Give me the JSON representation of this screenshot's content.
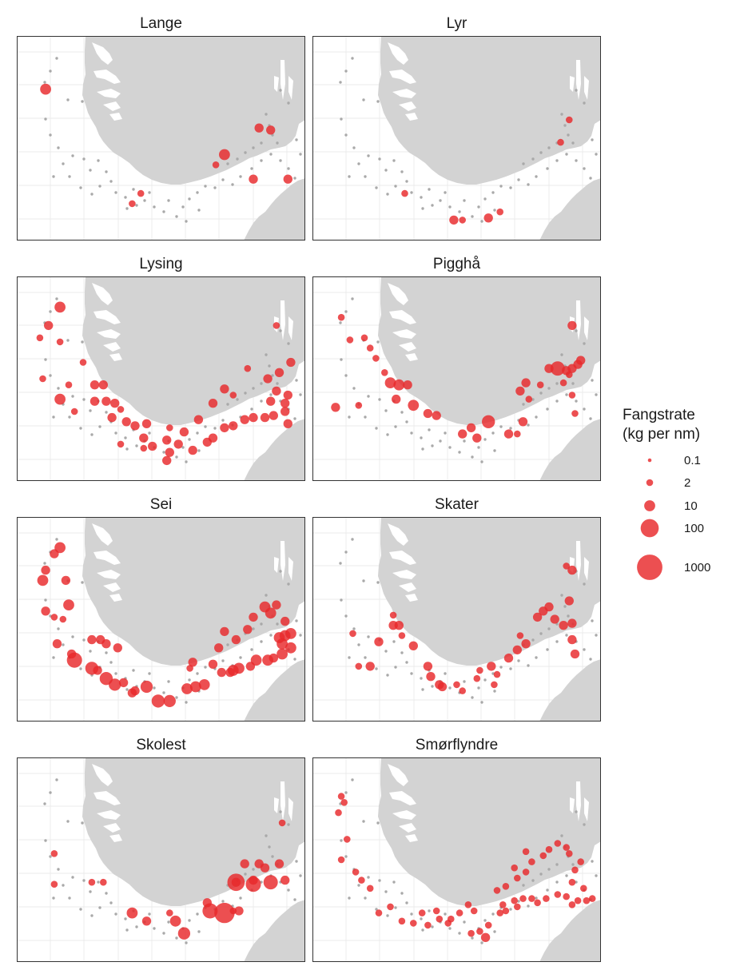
{
  "colors": {
    "catch": "#e8282b",
    "zero_catch": "#a9a9a9",
    "land": "#d3d3d3",
    "grid": "#ebebeb",
    "border": "#333333",
    "background": "#ffffff"
  },
  "legend": {
    "title_line1": "Fangstrate",
    "title_line2": "(kg per nm)",
    "entries": [
      {
        "label": "0.1",
        "value": 0.1
      },
      {
        "label": "2",
        "value": 2
      },
      {
        "label": "10",
        "value": 10
      },
      {
        "label": "100",
        "value": 100
      },
      {
        "label": "1000",
        "value": 1000
      }
    ]
  },
  "panels": [
    {
      "title": "Lange",
      "catches": [
        [
          0.1,
          0.26,
          10
        ],
        [
          0.43,
          0.77,
          2
        ],
        [
          0.4,
          0.82,
          2
        ],
        [
          0.72,
          0.58,
          10
        ],
        [
          0.69,
          0.63,
          2
        ],
        [
          0.84,
          0.45,
          5
        ],
        [
          0.88,
          0.46,
          5
        ],
        [
          0.82,
          0.7,
          5
        ],
        [
          0.94,
          0.7,
          5
        ]
      ]
    },
    {
      "title": "Lyr",
      "catches": [
        [
          0.32,
          0.77,
          2
        ],
        [
          0.49,
          0.9,
          5
        ],
        [
          0.52,
          0.9,
          2
        ],
        [
          0.61,
          0.89,
          5
        ],
        [
          0.65,
          0.86,
          2
        ],
        [
          0.86,
          0.52,
          2
        ],
        [
          0.89,
          0.41,
          2
        ]
      ]
    },
    {
      "title": "Lysing",
      "catches": [
        [
          0.15,
          0.15,
          10
        ],
        [
          0.11,
          0.24,
          5
        ],
        [
          0.08,
          0.3,
          2
        ],
        [
          0.15,
          0.32,
          2
        ],
        [
          0.23,
          0.42,
          2
        ],
        [
          0.09,
          0.5,
          2
        ],
        [
          0.15,
          0.6,
          10
        ],
        [
          0.18,
          0.53,
          2
        ],
        [
          0.2,
          0.66,
          2
        ],
        [
          0.27,
          0.53,
          5
        ],
        [
          0.3,
          0.53,
          5
        ],
        [
          0.27,
          0.61,
          5
        ],
        [
          0.31,
          0.61,
          5
        ],
        [
          0.34,
          0.62,
          5
        ],
        [
          0.36,
          0.65,
          2
        ],
        [
          0.33,
          0.69,
          5
        ],
        [
          0.38,
          0.71,
          5
        ],
        [
          0.41,
          0.73,
          5
        ],
        [
          0.44,
          0.79,
          5
        ],
        [
          0.47,
          0.83,
          5
        ],
        [
          0.52,
          0.8,
          5
        ],
        [
          0.53,
          0.86,
          5
        ],
        [
          0.56,
          0.82,
          5
        ],
        [
          0.58,
          0.76,
          5
        ],
        [
          0.61,
          0.85,
          5
        ],
        [
          0.66,
          0.81,
          5
        ],
        [
          0.68,
          0.79,
          5
        ],
        [
          0.72,
          0.74,
          5
        ],
        [
          0.75,
          0.73,
          5
        ],
        [
          0.79,
          0.7,
          5
        ],
        [
          0.82,
          0.69,
          5
        ],
        [
          0.86,
          0.69,
          5
        ],
        [
          0.89,
          0.68,
          5
        ],
        [
          0.93,
          0.66,
          5
        ],
        [
          0.94,
          0.72,
          5
        ],
        [
          0.87,
          0.5,
          5
        ],
        [
          0.91,
          0.47,
          5
        ],
        [
          0.95,
          0.42,
          5
        ],
        [
          0.9,
          0.56,
          5
        ],
        [
          0.94,
          0.58,
          5
        ],
        [
          0.93,
          0.62,
          5
        ],
        [
          0.88,
          0.61,
          5
        ],
        [
          0.8,
          0.45,
          2
        ],
        [
          0.75,
          0.58,
          2
        ],
        [
          0.72,
          0.55,
          5
        ],
        [
          0.68,
          0.62,
          5
        ],
        [
          0.63,
          0.7,
          5
        ],
        [
          0.53,
          0.74,
          2
        ],
        [
          0.45,
          0.72,
          5
        ],
        [
          0.52,
          0.9,
          5
        ],
        [
          0.44,
          0.84,
          2
        ],
        [
          0.36,
          0.82,
          2
        ],
        [
          0.9,
          0.24,
          2
        ]
      ]
    },
    {
      "title": "Pigghå",
      "catches": [
        [
          0.1,
          0.2,
          2
        ],
        [
          0.13,
          0.31,
          2
        ],
        [
          0.18,
          0.3,
          2
        ],
        [
          0.2,
          0.35,
          2
        ],
        [
          0.22,
          0.4,
          2
        ],
        [
          0.25,
          0.47,
          2
        ],
        [
          0.27,
          0.52,
          10
        ],
        [
          0.3,
          0.53,
          10
        ],
        [
          0.33,
          0.53,
          5
        ],
        [
          0.29,
          0.6,
          5
        ],
        [
          0.35,
          0.63,
          10
        ],
        [
          0.4,
          0.67,
          5
        ],
        [
          0.43,
          0.68,
          5
        ],
        [
          0.52,
          0.77,
          5
        ],
        [
          0.55,
          0.74,
          5
        ],
        [
          0.57,
          0.79,
          5
        ],
        [
          0.61,
          0.71,
          20
        ],
        [
          0.68,
          0.77,
          5
        ],
        [
          0.71,
          0.77,
          2
        ],
        [
          0.73,
          0.71,
          5
        ],
        [
          0.72,
          0.56,
          5
        ],
        [
          0.74,
          0.52,
          5
        ],
        [
          0.75,
          0.6,
          2
        ],
        [
          0.79,
          0.53,
          2
        ],
        [
          0.82,
          0.45,
          5
        ],
        [
          0.85,
          0.45,
          30
        ],
        [
          0.88,
          0.46,
          5
        ],
        [
          0.9,
          0.45,
          5
        ],
        [
          0.92,
          0.43,
          5
        ],
        [
          0.93,
          0.41,
          5
        ],
        [
          0.9,
          0.24,
          5
        ],
        [
          0.89,
          0.48,
          2
        ],
        [
          0.87,
          0.52,
          2
        ],
        [
          0.9,
          0.58,
          2
        ],
        [
          0.91,
          0.67,
          2
        ],
        [
          0.08,
          0.64,
          5
        ],
        [
          0.16,
          0.63,
          2
        ]
      ]
    },
    {
      "title": "Sei",
      "catches": [
        [
          0.15,
          0.15,
          10
        ],
        [
          0.13,
          0.18,
          5
        ],
        [
          0.1,
          0.26,
          5
        ],
        [
          0.09,
          0.31,
          10
        ],
        [
          0.17,
          0.31,
          5
        ],
        [
          0.18,
          0.43,
          10
        ],
        [
          0.1,
          0.46,
          5
        ],
        [
          0.13,
          0.49,
          2
        ],
        [
          0.14,
          0.62,
          5
        ],
        [
          0.19,
          0.67,
          5
        ],
        [
          0.2,
          0.7,
          40
        ],
        [
          0.26,
          0.6,
          5
        ],
        [
          0.29,
          0.6,
          5
        ],
        [
          0.31,
          0.62,
          5
        ],
        [
          0.35,
          0.64,
          5
        ],
        [
          0.26,
          0.74,
          20
        ],
        [
          0.28,
          0.75,
          5
        ],
        [
          0.31,
          0.79,
          20
        ],
        [
          0.34,
          0.82,
          15
        ],
        [
          0.37,
          0.81,
          5
        ],
        [
          0.4,
          0.86,
          5
        ],
        [
          0.41,
          0.85,
          5
        ],
        [
          0.45,
          0.83,
          15
        ],
        [
          0.49,
          0.9,
          20
        ],
        [
          0.53,
          0.9,
          15
        ],
        [
          0.59,
          0.84,
          10
        ],
        [
          0.62,
          0.83,
          10
        ],
        [
          0.65,
          0.82,
          10
        ],
        [
          0.61,
          0.71,
          5
        ],
        [
          0.68,
          0.72,
          5
        ],
        [
          0.71,
          0.76,
          5
        ],
        [
          0.74,
          0.76,
          5
        ],
        [
          0.75,
          0.75,
          10
        ],
        [
          0.77,
          0.74,
          10
        ],
        [
          0.81,
          0.73,
          5
        ],
        [
          0.83,
          0.7,
          10
        ],
        [
          0.87,
          0.7,
          10
        ],
        [
          0.89,
          0.69,
          5
        ],
        [
          0.92,
          0.67,
          10
        ],
        [
          0.92,
          0.62,
          10
        ],
        [
          0.91,
          0.59,
          10
        ],
        [
          0.93,
          0.58,
          10
        ],
        [
          0.95,
          0.57,
          10
        ],
        [
          0.95,
          0.64,
          10
        ],
        [
          0.93,
          0.51,
          5
        ],
        [
          0.88,
          0.47,
          10
        ],
        [
          0.86,
          0.44,
          10
        ],
        [
          0.82,
          0.49,
          5
        ],
        [
          0.8,
          0.55,
          5
        ],
        [
          0.76,
          0.6,
          5
        ],
        [
          0.72,
          0.56,
          5
        ],
        [
          0.9,
          0.43,
          5
        ],
        [
          0.6,
          0.74,
          2
        ],
        [
          0.7,
          0.64,
          5
        ],
        [
          0.16,
          0.5,
          2
        ]
      ]
    },
    {
      "title": "Skater",
      "catches": [
        [
          0.2,
          0.73,
          5
        ],
        [
          0.16,
          0.73,
          2
        ],
        [
          0.23,
          0.61,
          5
        ],
        [
          0.28,
          0.48,
          2
        ],
        [
          0.28,
          0.53,
          5
        ],
        [
          0.3,
          0.53,
          5
        ],
        [
          0.35,
          0.63,
          5
        ],
        [
          0.4,
          0.73,
          5
        ],
        [
          0.41,
          0.78,
          5
        ],
        [
          0.44,
          0.82,
          5
        ],
        [
          0.45,
          0.83,
          5
        ],
        [
          0.5,
          0.82,
          2
        ],
        [
          0.52,
          0.85,
          2
        ],
        [
          0.58,
          0.75,
          2
        ],
        [
          0.62,
          0.73,
          5
        ],
        [
          0.64,
          0.77,
          2
        ],
        [
          0.68,
          0.69,
          5
        ],
        [
          0.71,
          0.65,
          5
        ],
        [
          0.74,
          0.62,
          5
        ],
        [
          0.78,
          0.49,
          5
        ],
        [
          0.82,
          0.44,
          5
        ],
        [
          0.8,
          0.46,
          5
        ],
        [
          0.84,
          0.5,
          5
        ],
        [
          0.87,
          0.53,
          5
        ],
        [
          0.9,
          0.52,
          5
        ],
        [
          0.9,
          0.6,
          5
        ],
        [
          0.91,
          0.67,
          5
        ],
        [
          0.89,
          0.41,
          5
        ],
        [
          0.9,
          0.26,
          5
        ],
        [
          0.88,
          0.24,
          2
        ],
        [
          0.72,
          0.58,
          2
        ],
        [
          0.31,
          0.58,
          2
        ],
        [
          0.63,
          0.82,
          2
        ],
        [
          0.57,
          0.79,
          2
        ],
        [
          0.14,
          0.57,
          2
        ]
      ]
    },
    {
      "title": "Skolest",
      "catches": [
        [
          0.13,
          0.47,
          2
        ],
        [
          0.13,
          0.62,
          2
        ],
        [
          0.26,
          0.61,
          2
        ],
        [
          0.3,
          0.61,
          2
        ],
        [
          0.4,
          0.76,
          10
        ],
        [
          0.45,
          0.8,
          5
        ],
        [
          0.53,
          0.76,
          2
        ],
        [
          0.55,
          0.8,
          10
        ],
        [
          0.58,
          0.86,
          15
        ],
        [
          0.66,
          0.71,
          5
        ],
        [
          0.67,
          0.75,
          40
        ],
        [
          0.72,
          0.76,
          200
        ],
        [
          0.77,
          0.75,
          5
        ],
        [
          0.76,
          0.61,
          5
        ],
        [
          0.79,
          0.52,
          5
        ],
        [
          0.84,
          0.52,
          5
        ],
        [
          0.82,
          0.6,
          5
        ],
        [
          0.86,
          0.54,
          5
        ],
        [
          0.91,
          0.52,
          5
        ],
        [
          0.93,
          0.6,
          5
        ],
        [
          0.76,
          0.61,
          80
        ],
        [
          0.82,
          0.62,
          40
        ],
        [
          0.88,
          0.61,
          30
        ],
        [
          0.92,
          0.32,
          2
        ],
        [
          0.75,
          0.75,
          2
        ]
      ]
    },
    {
      "title": "Smørflyndre",
      "catches": [
        [
          0.1,
          0.19,
          2
        ],
        [
          0.11,
          0.22,
          2
        ],
        [
          0.09,
          0.27,
          2
        ],
        [
          0.12,
          0.4,
          2
        ],
        [
          0.1,
          0.5,
          2
        ],
        [
          0.15,
          0.56,
          2
        ],
        [
          0.17,
          0.6,
          2
        ],
        [
          0.2,
          0.64,
          2
        ],
        [
          0.23,
          0.76,
          2
        ],
        [
          0.27,
          0.73,
          2
        ],
        [
          0.31,
          0.8,
          2
        ],
        [
          0.35,
          0.81,
          2
        ],
        [
          0.4,
          0.82,
          2
        ],
        [
          0.44,
          0.79,
          2
        ],
        [
          0.47,
          0.81,
          2
        ],
        [
          0.51,
          0.76,
          2
        ],
        [
          0.54,
          0.72,
          2
        ],
        [
          0.56,
          0.75,
          2
        ],
        [
          0.58,
          0.85,
          2
        ],
        [
          0.61,
          0.82,
          2
        ],
        [
          0.65,
          0.76,
          2
        ],
        [
          0.67,
          0.75,
          2
        ],
        [
          0.7,
          0.7,
          2
        ],
        [
          0.71,
          0.73,
          2
        ],
        [
          0.73,
          0.69,
          2
        ],
        [
          0.76,
          0.69,
          2
        ],
        [
          0.78,
          0.71,
          2
        ],
        [
          0.81,
          0.69,
          2
        ],
        [
          0.85,
          0.67,
          2
        ],
        [
          0.88,
          0.68,
          2
        ],
        [
          0.9,
          0.72,
          2
        ],
        [
          0.92,
          0.7,
          2
        ],
        [
          0.95,
          0.7,
          2
        ],
        [
          0.97,
          0.69,
          2
        ],
        [
          0.94,
          0.64,
          2
        ],
        [
          0.9,
          0.61,
          2
        ],
        [
          0.91,
          0.55,
          2
        ],
        [
          0.93,
          0.51,
          2
        ],
        [
          0.89,
          0.47,
          2
        ],
        [
          0.88,
          0.44,
          2
        ],
        [
          0.85,
          0.42,
          2
        ],
        [
          0.82,
          0.45,
          2
        ],
        [
          0.8,
          0.48,
          2
        ],
        [
          0.76,
          0.51,
          2
        ],
        [
          0.74,
          0.56,
          2
        ],
        [
          0.71,
          0.59,
          2
        ],
        [
          0.67,
          0.63,
          2
        ],
        [
          0.64,
          0.65,
          2
        ],
        [
          0.74,
          0.46,
          2
        ],
        [
          0.6,
          0.88,
          5
        ],
        [
          0.55,
          0.86,
          2
        ],
        [
          0.48,
          0.79,
          2
        ],
        [
          0.43,
          0.75,
          2
        ],
        [
          0.38,
          0.76,
          2
        ],
        [
          0.66,
          0.72,
          2
        ],
        [
          0.7,
          0.54,
          2
        ]
      ]
    }
  ]
}
